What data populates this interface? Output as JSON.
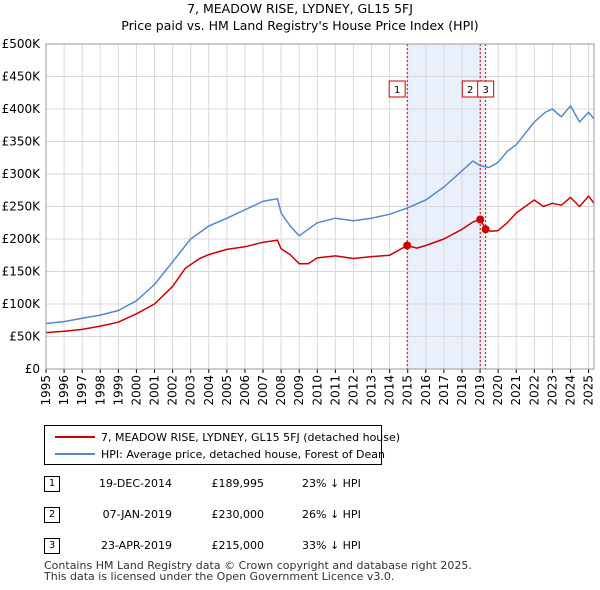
{
  "title_line1": "7, MEADOW RISE, LYDNEY, GL15 5FJ",
  "title_line2": "Price paid vs. HM Land Registry's House Price Index (HPI)",
  "chart_data": {
    "type": "line",
    "title": "7, MEADOW RISE, LYDNEY, GL15 5FJ — Price paid vs. HM Land Registry's House Price Index (HPI)",
    "xlim": [
      1995.0,
      2025.3
    ],
    "ylim": [
      0,
      500000
    ],
    "yticks": [
      {
        "value": 0,
        "label": "£0"
      },
      {
        "value": 50000,
        "label": "£50K"
      },
      {
        "value": 100000,
        "label": "£100K"
      },
      {
        "value": 150000,
        "label": "£150K"
      },
      {
        "value": 200000,
        "label": "£200K"
      },
      {
        "value": 250000,
        "label": "£250K"
      },
      {
        "value": 300000,
        "label": "£300K"
      },
      {
        "value": 350000,
        "label": "£350K"
      },
      {
        "value": 400000,
        "label": "£400K"
      },
      {
        "value": 450000,
        "label": "£450K"
      },
      {
        "value": 500000,
        "label": "£500K"
      }
    ],
    "xticks": [
      "1995",
      "1996",
      "1997",
      "1998",
      "1999",
      "2000",
      "2001",
      "2002",
      "2003",
      "2004",
      "2005",
      "2006",
      "2007",
      "2008",
      "2009",
      "2010",
      "2011",
      "2012",
      "2013",
      "2014",
      "2015",
      "2016",
      "2017",
      "2018",
      "2019",
      "2020",
      "2021",
      "2022",
      "2023",
      "2024",
      "2025"
    ],
    "shaded_region": {
      "from": 2014.97,
      "to": 2019.31
    },
    "series": [
      {
        "name": "7, MEADOW RISE, LYDNEY, GL15 5FJ (detached house)",
        "color": "#cc0000",
        "x": [
          1995.0,
          1996.0,
          1997.0,
          1998.0,
          1999.0,
          2000.0,
          2001.0,
          2002.0,
          2002.7,
          2003.5,
          2004.0,
          2004.5,
          2005.0,
          2006.0,
          2007.0,
          2007.8,
          2008.0,
          2008.5,
          2009.0,
          2009.5,
          2010.0,
          2011.0,
          2012.0,
          2013.0,
          2014.0,
          2014.97,
          2015.5,
          2016.0,
          2017.0,
          2018.0,
          2018.6,
          2019.01,
          2019.31,
          2019.6,
          2020.0,
          2020.5,
          2021.0,
          2022.0,
          2022.5,
          2023.0,
          2023.5,
          2024.0,
          2024.5,
          2025.0,
          2025.3
        ],
        "values": [
          56000,
          58000,
          61000,
          66000,
          72000,
          85000,
          100000,
          127000,
          155000,
          170000,
          176000,
          180000,
          184000,
          188000,
          195000,
          198000,
          185000,
          176000,
          162000,
          162000,
          171000,
          174000,
          170000,
          173000,
          175000,
          189995,
          186000,
          190000,
          200000,
          215000,
          226000,
          230000,
          215000,
          212000,
          213000,
          225000,
          240000,
          260000,
          250000,
          255000,
          252000,
          264000,
          250000,
          266000,
          255000
        ]
      },
      {
        "name": "HPI: Average price, detached house, Forest of Dean",
        "color": "#5588cc",
        "x": [
          1995.0,
          1996.0,
          1997.0,
          1998.0,
          1999.0,
          2000.0,
          2001.0,
          2002.0,
          2003.0,
          2004.0,
          2005.0,
          2006.0,
          2007.0,
          2007.8,
          2008.0,
          2008.5,
          2009.0,
          2009.5,
          2010.0,
          2011.0,
          2012.0,
          2013.0,
          2014.0,
          2015.0,
          2016.0,
          2017.0,
          2018.0,
          2018.6,
          2019.0,
          2019.5,
          2020.0,
          2020.5,
          2021.0,
          2022.0,
          2022.6,
          2023.0,
          2023.5,
          2024.0,
          2024.5,
          2025.0,
          2025.3
        ],
        "values": [
          70000,
          73000,
          78000,
          83000,
          90000,
          105000,
          130000,
          165000,
          200000,
          220000,
          232000,
          245000,
          258000,
          262000,
          240000,
          220000,
          205000,
          215000,
          225000,
          232000,
          228000,
          232000,
          238000,
          248000,
          260000,
          280000,
          305000,
          320000,
          313000,
          310000,
          318000,
          335000,
          345000,
          380000,
          395000,
          400000,
          388000,
          405000,
          380000,
          395000,
          385000
        ]
      }
    ],
    "annotations": [
      {
        "label": "1",
        "x": 2014.97
      },
      {
        "label": "2",
        "x": 2019.01
      },
      {
        "label": "3",
        "x": 2019.31
      }
    ],
    "sale_points": [
      {
        "x": 2014.97,
        "value": 189995
      },
      {
        "x": 2019.01,
        "value": 230000
      },
      {
        "x": 2019.31,
        "value": 215000
      }
    ]
  },
  "legend": {
    "property_label": "7, MEADOW RISE, LYDNEY, GL15 5FJ (detached house)",
    "hpi_label": "HPI: Average price, detached house, Forest of Dean"
  },
  "transactions": [
    {
      "num": "1",
      "date": "19-DEC-2014",
      "price": "£189,995",
      "hpi": "23% ↓ HPI"
    },
    {
      "num": "2",
      "date": "07-JAN-2019",
      "price": "£230,000",
      "hpi": "26% ↓ HPI"
    },
    {
      "num": "3",
      "date": "23-APR-2019",
      "price": "£215,000",
      "hpi": "33% ↓ HPI"
    }
  ],
  "footer_line1": "Contains HM Land Registry data © Crown copyright and database right 2025.",
  "footer_line2": "This data is licensed under the Open Government Licence v3.0."
}
